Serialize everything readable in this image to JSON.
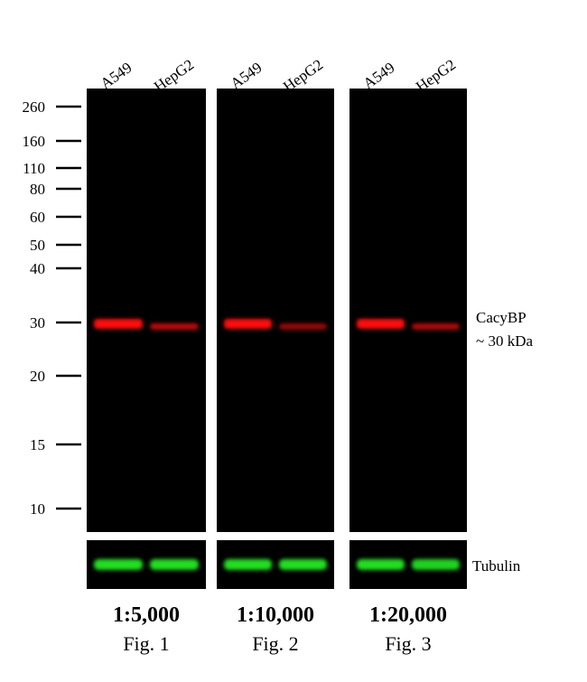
{
  "panels": [
    {
      "lanes": [
        "A549",
        "HepG2"
      ],
      "dilution": "1:5,000",
      "figure": "Fig. 1"
    },
    {
      "lanes": [
        "A549",
        "HepG2"
      ],
      "dilution": "1:10,000",
      "figure": "Fig. 2"
    },
    {
      "lanes": [
        "A549",
        "HepG2"
      ],
      "dilution": "1:20,000",
      "figure": "Fig. 3"
    }
  ],
  "markers": [
    "260",
    "160",
    "110",
    "80",
    "60",
    "50",
    "40",
    "30",
    "20",
    "15",
    "10"
  ],
  "band_label": "CacyBP",
  "band_size": "~ 30 kDa",
  "loading_control": "Tubulin"
}
